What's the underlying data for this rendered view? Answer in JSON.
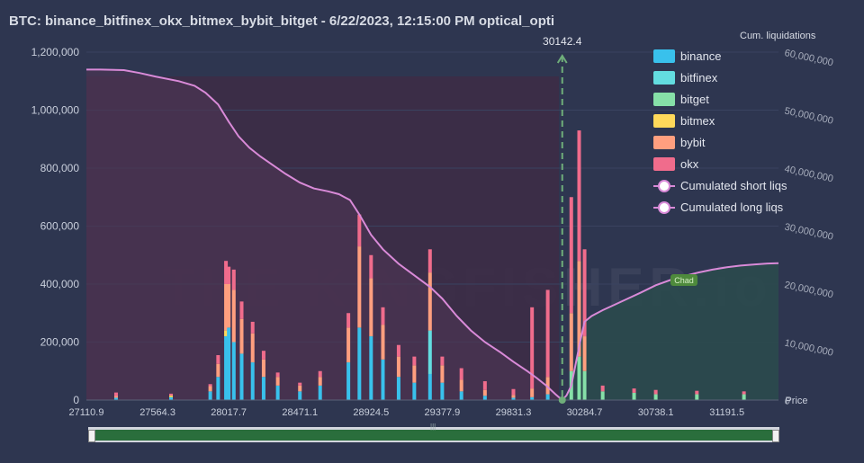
{
  "header": {
    "title": "BTC: binance_bitfinex_okx_bitmex_bybit_bitget - 6/22/2023, 12:15:00 PM optical_opti"
  },
  "watermark": "THE KINGFISHER.io",
  "chart_data": {
    "type": "bar",
    "x_axis": {
      "min": 27110.9,
      "max": 31520,
      "tick_labels": [
        "27110.9",
        "27564.3",
        "28017.7",
        "28471.1",
        "28924.5",
        "29377.9",
        "29831.3",
        "30284.7",
        "30738.1",
        "31191.5"
      ],
      "label": "Price"
    },
    "y_axis_left": {
      "min": 0,
      "max": 1200000,
      "tick_labels": [
        "0",
        "200,000",
        "400,000",
        "600,000",
        "800,000",
        "1,000,000",
        "1,200,000"
      ]
    },
    "y_axis_right": {
      "title": "Cum. liquidations",
      "min": 0,
      "max": 60000000,
      "tick_labels": [
        "0",
        "10,000,000",
        "20,000,000",
        "30,000,000",
        "40,000,000",
        "50,000,000",
        "60,000,000"
      ]
    },
    "current_price": {
      "label": "30142.4",
      "value": 30142.4
    },
    "badge": "Chad",
    "legend": [
      {
        "name": "binance",
        "color": "#39c1ec",
        "kind": "bar"
      },
      {
        "name": "bitfinex",
        "color": "#63dde0",
        "kind": "bar"
      },
      {
        "name": "bitget",
        "color": "#86e0a8",
        "kind": "bar"
      },
      {
        "name": "bitmex",
        "color": "#ffd95a",
        "kind": "bar"
      },
      {
        "name": "bybit",
        "color": "#ff9f7f",
        "kind": "bar"
      },
      {
        "name": "okx",
        "color": "#f06c8c",
        "kind": "bar"
      },
      {
        "name": "Cumulated short liqs",
        "color": "#d98ad8",
        "kind": "line"
      },
      {
        "name": "Cumulated long liqs",
        "color": "#d98ad8",
        "kind": "line"
      }
    ],
    "cumulated_long_liqs": {
      "x": [
        27110.9,
        27200,
        27350,
        27450,
        27550,
        27700,
        27800,
        27870,
        27950,
        28017.7,
        28080,
        28150,
        28220,
        28300,
        28380,
        28471.1,
        28560,
        28650,
        28720,
        28790,
        28850,
        28924.5,
        29000,
        29100,
        29200,
        29300,
        29377.9,
        29470,
        29560,
        29650,
        29750,
        29831.3,
        29920,
        29980,
        30040,
        30100,
        30142.4
      ],
      "y": [
        57000000,
        57000000,
        56900000,
        56400000,
        55800000,
        55000000,
        54200000,
        53000000,
        51000000,
        48000000,
        45500000,
        43500000,
        42000000,
        40500000,
        39000000,
        37500000,
        36500000,
        36000000,
        35500000,
        34500000,
        32000000,
        28500000,
        26000000,
        23500000,
        21500000,
        19500000,
        17500000,
        14500000,
        12000000,
        10000000,
        8200000,
        6600000,
        5000000,
        3800000,
        2500000,
        1000000,
        0
      ]
    },
    "cumulated_short_liqs": {
      "x": [
        30142.4,
        30170,
        30200,
        30230,
        30260,
        30284.7,
        30330,
        30400,
        30480,
        30560,
        30640,
        30738.1,
        30830,
        30920,
        31010,
        31100,
        31191.5,
        31280,
        31370,
        31450,
        31520
      ],
      "y": [
        0,
        800000,
        2500000,
        6500000,
        10500000,
        13500000,
        14500000,
        15500000,
        16500000,
        17500000,
        18500000,
        19800000,
        20700000,
        21400000,
        22000000,
        22500000,
        22900000,
        23200000,
        23400000,
        23550000,
        23600000
      ]
    },
    "bar_segments": [
      {
        "x": 27300,
        "values": {
          "binance": 8000,
          "bybit": 6000,
          "okx": 12000
        }
      },
      {
        "x": 27650,
        "values": {
          "binance": 10000,
          "bitmex": 6000,
          "okx": 6000
        }
      },
      {
        "x": 27900,
        "values": {
          "binance": 30000,
          "bybit": 18000,
          "okx": 7000
        }
      },
      {
        "x": 27950,
        "values": {
          "binance": 80000,
          "bybit": 45000,
          "okx": 30000
        }
      },
      {
        "x": 28000,
        "values": {
          "binance": 220000,
          "bybit": 160000,
          "okx": 80000,
          "bitmex": 20000
        }
      },
      {
        "x": 28017.7,
        "values": {
          "binance": 250000,
          "bybit": 150000,
          "okx": 60000
        }
      },
      {
        "x": 28050,
        "values": {
          "binance": 200000,
          "bybit": 180000,
          "okx": 70000
        }
      },
      {
        "x": 28100,
        "values": {
          "binance": 160000,
          "bybit": 120000,
          "okx": 60000
        }
      },
      {
        "x": 28170,
        "values": {
          "binance": 130000,
          "bybit": 100000,
          "okx": 40000
        }
      },
      {
        "x": 28240,
        "values": {
          "binance": 80000,
          "bybit": 60000,
          "okx": 30000
        }
      },
      {
        "x": 28330,
        "values": {
          "binance": 50000,
          "bybit": 30000,
          "okx": 15000
        }
      },
      {
        "x": 28471.1,
        "values": {
          "binance": 30000,
          "bybit": 20000,
          "okx": 10000
        }
      },
      {
        "x": 28600,
        "values": {
          "binance": 50000,
          "bybit": 30000,
          "okx": 20000
        }
      },
      {
        "x": 28780,
        "values": {
          "binance": 130000,
          "bybit": 120000,
          "okx": 50000
        }
      },
      {
        "x": 28850,
        "values": {
          "binance": 250000,
          "bybit": 280000,
          "okx": 110000
        }
      },
      {
        "x": 28924.5,
        "values": {
          "binance": 220000,
          "bybit": 200000,
          "okx": 80000
        }
      },
      {
        "x": 29000,
        "values": {
          "binance": 140000,
          "bybit": 120000,
          "okx": 60000
        }
      },
      {
        "x": 29100,
        "values": {
          "binance": 80000,
          "bybit": 70000,
          "okx": 40000
        }
      },
      {
        "x": 29200,
        "values": {
          "binance": 60000,
          "bybit": 60000,
          "okx": 30000
        }
      },
      {
        "x": 29300,
        "values": {
          "binance": 90000,
          "bitfinex": 150000,
          "bybit": 200000,
          "okx": 80000
        }
      },
      {
        "x": 29377.9,
        "values": {
          "binance": 60000,
          "bybit": 60000,
          "okx": 30000
        }
      },
      {
        "x": 29500,
        "values": {
          "binance": 30000,
          "bybit": 40000,
          "okx": 40000
        }
      },
      {
        "x": 29650,
        "values": {
          "binance": 15000,
          "bybit": 20000,
          "okx": 30000
        }
      },
      {
        "x": 29831.3,
        "values": {
          "binance": 8000,
          "bybit": 10000,
          "okx": 20000
        }
      },
      {
        "x": 29950,
        "values": {
          "binance": 10000,
          "bybit": 30000,
          "okx": 280000
        }
      },
      {
        "x": 30050,
        "values": {
          "binance": 20000,
          "bybit": 60000,
          "okx": 300000
        }
      },
      {
        "x": 30200,
        "values": {
          "bitget": 100000,
          "okx": 400000,
          "bybit": 200000
        }
      },
      {
        "x": 30250,
        "values": {
          "bitget": 150000,
          "okx": 450000,
          "bybit": 330000
        }
      },
      {
        "x": 30284.7,
        "values": {
          "bitget": 100000,
          "okx": 300000,
          "bybit": 120000
        }
      },
      {
        "x": 30400,
        "values": {
          "bitget": 30000,
          "okx": 20000
        }
      },
      {
        "x": 30600,
        "values": {
          "bitget": 25000,
          "okx": 15000
        }
      },
      {
        "x": 30738.1,
        "values": {
          "bitget": 20000,
          "okx": 15000
        }
      },
      {
        "x": 31000,
        "values": {
          "bitget": 20000,
          "okx": 12000
        }
      },
      {
        "x": 31300,
        "values": {
          "bitget": 20000,
          "okx": 10000
        }
      }
    ]
  }
}
